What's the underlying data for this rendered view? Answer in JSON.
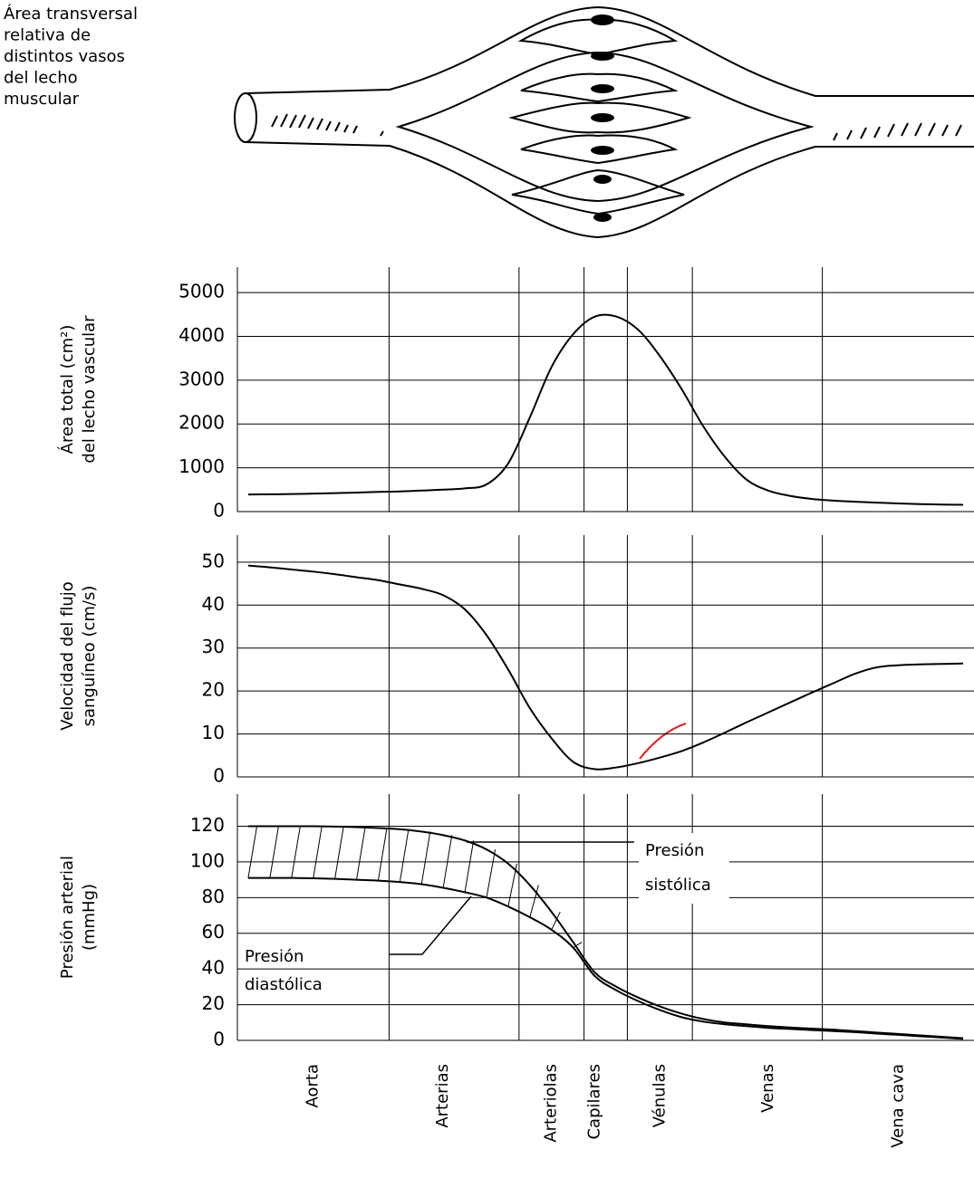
{
  "caption": [
    "Área transversal",
    "relativa de",
    "distintos vasos",
    "del lecho",
    "muscular"
  ],
  "chart_data": [
    {
      "type": "line",
      "ylabel": [
        "Área total (cm²)",
        "del lecho vascular"
      ],
      "ylim": [
        0,
        5580
      ],
      "yticks": [
        0,
        1000,
        2000,
        3000,
        4000,
        5000
      ],
      "grid": true,
      "color": "#000000",
      "values": [
        390,
        395,
        400,
        410,
        420,
        435,
        450,
        460,
        480,
        500,
        530,
        620,
        1100,
        2150,
        3300,
        4050,
        4450,
        4450,
        4150,
        3550,
        2800,
        1950,
        1250,
        730,
        480,
        360,
        290,
        250,
        225,
        205,
        185,
        170,
        160,
        155
      ]
    },
    {
      "type": "line",
      "ylabel": [
        "Velocidad del flujo",
        "sanguíneo (cm/s)"
      ],
      "ylim": [
        0,
        56.3
      ],
      "yticks": [
        0,
        10,
        20,
        30,
        40,
        50
      ],
      "grid": true,
      "color": "#000000",
      "values": [
        49.2,
        48.8,
        48.3,
        47.8,
        47.2,
        46.5,
        45.8,
        44.8,
        43.8,
        42.3,
        39,
        33,
        25,
        16,
        9,
        3.5,
        1.8,
        2.2,
        3.2,
        4.5,
        6,
        8,
        10.3,
        12.7,
        15,
        17.3,
        19.6,
        21.8,
        24,
        25.5,
        26,
        26.2,
        26.3,
        26.4
      ]
    },
    {
      "type": "line",
      "ylabel": [
        "Presión arterial",
        "(mmHg)"
      ],
      "ylim": [
        0,
        138
      ],
      "yticks": [
        0,
        20,
        40,
        60,
        80,
        100,
        120
      ],
      "grid": true,
      "annotations": [
        "Presión",
        "sistólica",
        "Presión",
        "diastólica"
      ],
      "categories": [
        null,
        null,
        null,
        "Aorta",
        null,
        null,
        null,
        null,
        null,
        "Arterias",
        null,
        null,
        null,
        null,
        "Arteriolas",
        null,
        "Capilares",
        null,
        null,
        "Vénulas",
        null,
        null,
        null,
        null,
        "Venas",
        null,
        null,
        null,
        null,
        null,
        "Vena cava",
        null,
        null,
        null
      ],
      "series": [
        {
          "color": "#000000",
          "values": [
            120,
            120,
            120,
            120,
            119.8,
            119.5,
            119,
            118.3,
            117,
            115,
            112,
            107,
            99,
            87,
            72,
            55,
            38,
            30,
            24,
            19,
            15,
            12,
            10,
            9,
            8,
            7.2,
            6.6,
            6,
            5.2,
            4.4,
            3.6,
            2.8,
            2,
            1.2
          ]
        },
        {
          "color": "#000000",
          "values": [
            91,
            91,
            91,
            90.8,
            90.5,
            90,
            89.5,
            88.7,
            87.5,
            85.5,
            83,
            80,
            75,
            69,
            62,
            52,
            36,
            28,
            22,
            17,
            13,
            10.5,
            9,
            8,
            7,
            6.4,
            5.8,
            5.2,
            4.6,
            3.8,
            3.1,
            2.3,
            1.6,
            0.8
          ]
        }
      ]
    }
  ]
}
